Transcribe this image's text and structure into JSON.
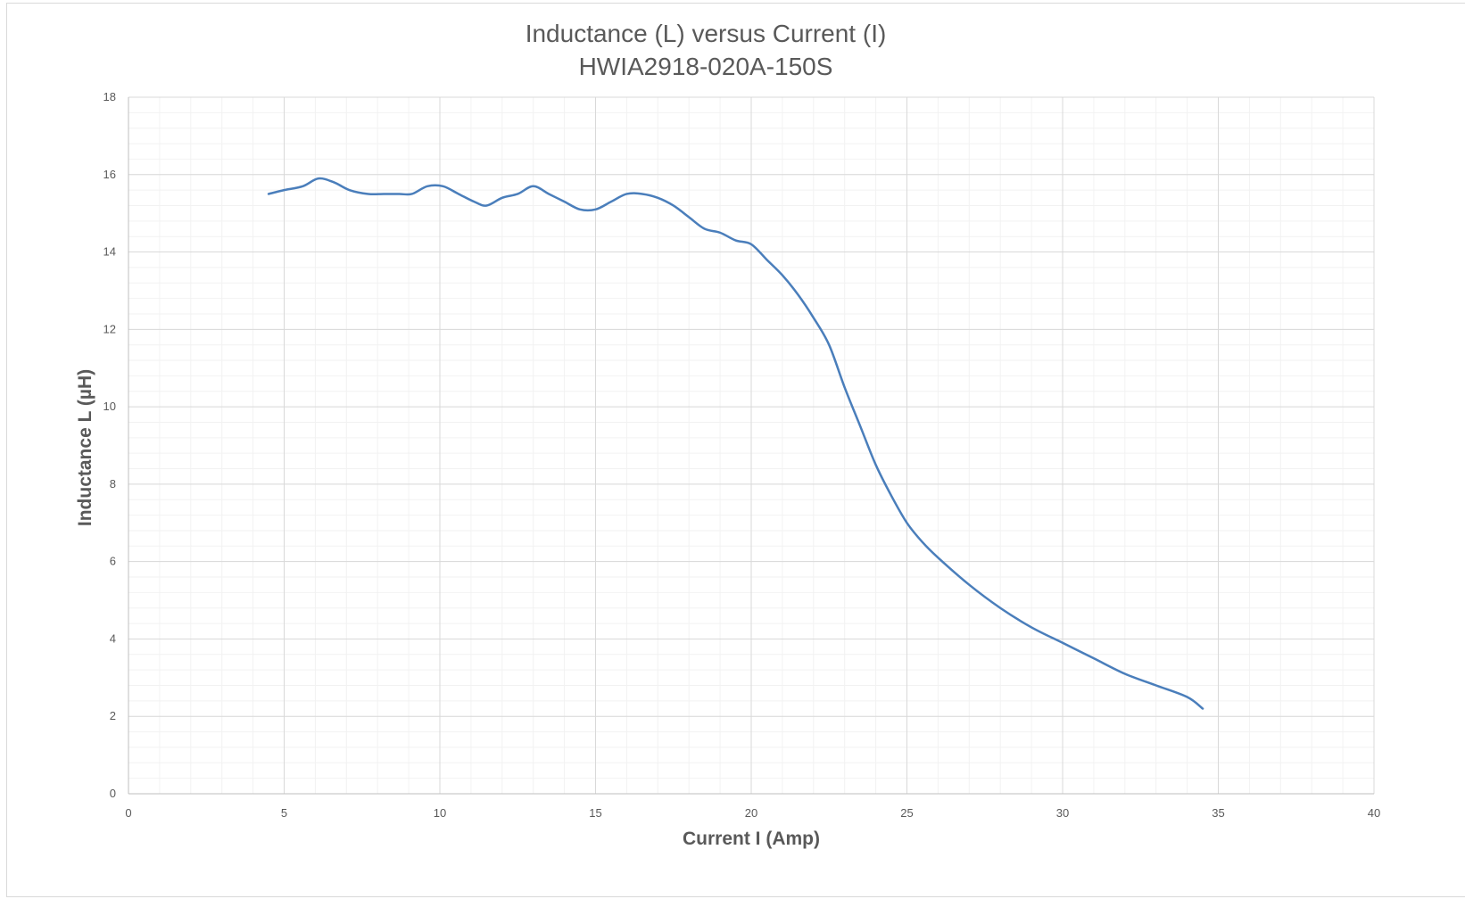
{
  "chart_data": {
    "type": "line",
    "title": "Inductance (L) versus Current (I)",
    "subtitle": "HWIA2918-020A-150S",
    "xlabel": "Current I (Amp)",
    "ylabel": "Inductance L (µH)",
    "xlim": [
      0,
      40
    ],
    "ylim": [
      0,
      18
    ],
    "xticks": [
      0,
      5,
      10,
      15,
      20,
      25,
      30,
      35,
      40
    ],
    "yticks": [
      0,
      2,
      4,
      6,
      8,
      10,
      12,
      14,
      16,
      18
    ],
    "x_minor_step": 1,
    "y_minor_step": 0.4,
    "grid": true,
    "legend": "none",
    "series": [
      {
        "color": "#4a7ebb",
        "x": [
          4.5,
          5.0,
          5.6,
          6.1,
          6.6,
          7.1,
          7.7,
          8.2,
          8.7,
          9.1,
          9.6,
          10.1,
          10.6,
          11.1,
          11.5,
          12.0,
          12.5,
          13.0,
          13.5,
          14.0,
          14.5,
          15.0,
          15.5,
          16.0,
          16.5,
          17.0,
          17.5,
          18.0,
          18.5,
          19.0,
          19.5,
          20.0,
          20.5,
          21.0,
          21.5,
          22.0,
          22.5,
          23.0,
          23.5,
          24.0,
          24.5,
          25.0,
          25.5,
          26.0,
          27.0,
          28.0,
          29.0,
          30.0,
          31.0,
          32.0,
          33.0,
          34.0,
          34.5
        ],
        "y": [
          15.5,
          15.6,
          15.7,
          15.9,
          15.8,
          15.6,
          15.5,
          15.5,
          15.5,
          15.5,
          15.7,
          15.7,
          15.5,
          15.3,
          15.2,
          15.4,
          15.5,
          15.7,
          15.5,
          15.3,
          15.1,
          15.1,
          15.3,
          15.5,
          15.5,
          15.4,
          15.2,
          14.9,
          14.6,
          14.5,
          14.3,
          14.2,
          13.8,
          13.4,
          12.9,
          12.3,
          11.6,
          10.5,
          9.5,
          8.5,
          7.7,
          7.0,
          6.5,
          6.1,
          5.4,
          4.8,
          4.3,
          3.9,
          3.5,
          3.1,
          2.8,
          2.5,
          2.2
        ]
      }
    ]
  }
}
